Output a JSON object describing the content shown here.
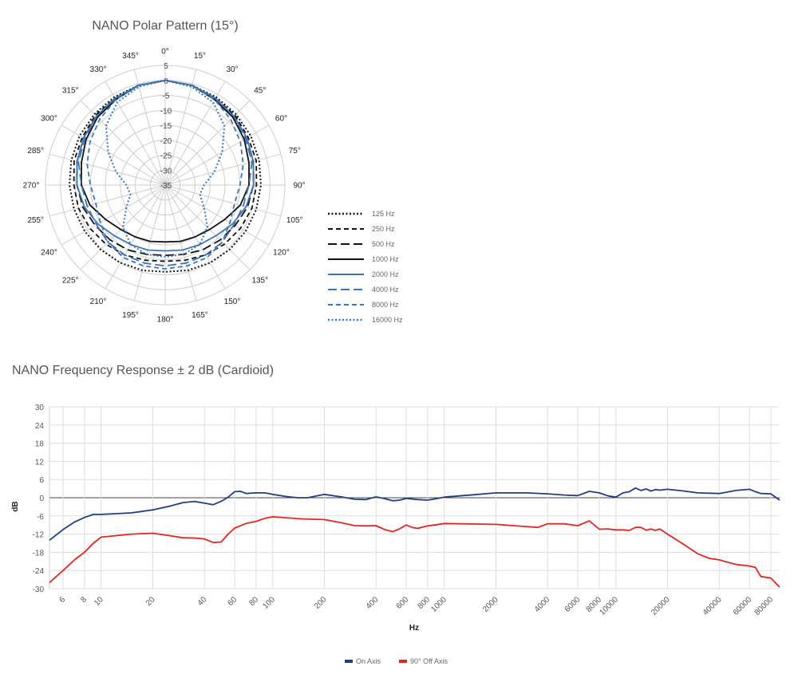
{
  "polar": {
    "title": "NANO Polar Pattern (15°)",
    "angle_labels": [
      "0°",
      "15°",
      "30°",
      "45°",
      "60°",
      "75°",
      "90°",
      "105°",
      "120°",
      "135°",
      "150°",
      "165°",
      "180°",
      "195°",
      "210°",
      "225°",
      "240°",
      "255°",
      "270°",
      "285°",
      "300°",
      "315°",
      "330°",
      "345°"
    ],
    "radial_labels": [
      "5",
      "0",
      "-5",
      "-10",
      "-15",
      "-20",
      "-25",
      "-30",
      "-35"
    ],
    "radial_range": [
      -35,
      5
    ],
    "legend": [
      {
        "label": "125 Hz",
        "color": "#111111",
        "dash": "dot"
      },
      {
        "label": "250 Hz",
        "color": "#111111",
        "dash": "short"
      },
      {
        "label": "500 Hz",
        "color": "#111111",
        "dash": "long"
      },
      {
        "label": "1000 Hz",
        "color": "#111111",
        "dash": "solid"
      },
      {
        "label": "2000 Hz",
        "color": "#3f75b0",
        "dash": "solid"
      },
      {
        "label": "4000 Hz",
        "color": "#3f75b0",
        "dash": "long"
      },
      {
        "label": "8000 Hz",
        "color": "#3f75b0",
        "dash": "short"
      },
      {
        "label": "16000 Hz",
        "color": "#3f75b0",
        "dash": "dot"
      }
    ]
  },
  "chart_data": [
    {
      "type": "line",
      "subtype": "polar",
      "title": "NANO Polar Pattern (15°)",
      "angles": [
        0,
        15,
        30,
        45,
        60,
        75,
        90,
        105,
        120,
        135,
        150,
        165,
        180,
        195,
        210,
        225,
        240,
        255,
        270,
        285,
        300,
        315,
        330,
        345
      ],
      "r_range": [
        -35,
        5
      ],
      "series": [
        {
          "name": "125 Hz",
          "values": [
            0,
            -0.5,
            -1,
            -1.5,
            -2,
            -2.5,
            -3,
            -3.5,
            -4,
            -4.5,
            -5,
            -5.5,
            -6,
            -5.5,
            -5,
            -4.5,
            -4,
            -3.5,
            -3,
            -2.5,
            -2,
            -1.5,
            -1,
            -0.5
          ]
        },
        {
          "name": "250 Hz",
          "values": [
            0,
            -0.5,
            -1.5,
            -2,
            -3,
            -3.5,
            -4.5,
            -5,
            -6,
            -7,
            -8,
            -9,
            -9.5,
            -9,
            -8,
            -7,
            -6,
            -5,
            -4.5,
            -3.5,
            -3,
            -2,
            -1.5,
            -0.5
          ]
        },
        {
          "name": "500 Hz",
          "values": [
            0,
            -0.5,
            -1.5,
            -2.5,
            -3.5,
            -4.5,
            -5.5,
            -6.5,
            -8,
            -9,
            -10,
            -11,
            -11.5,
            -11,
            -10,
            -9,
            -8,
            -6.5,
            -5.5,
            -4.5,
            -3.5,
            -2.5,
            -1.5,
            -0.5
          ]
        },
        {
          "name": "1000 Hz",
          "values": [
            0,
            -0.5,
            -2,
            -3,
            -4.5,
            -6,
            -7,
            -9,
            -12,
            -14,
            -15,
            -15.5,
            -16,
            -15.5,
            -15,
            -14,
            -12,
            -9,
            -7,
            -6,
            -4.5,
            -3,
            -2,
            -0.5
          ]
        },
        {
          "name": "2000 Hz",
          "values": [
            0,
            -0.5,
            -1.5,
            -2.5,
            -3.5,
            -4.5,
            -5.5,
            -7,
            -9,
            -11,
            -12,
            -12.5,
            -13,
            -12.5,
            -12,
            -11,
            -9,
            -7,
            -5.5,
            -4.5,
            -3.5,
            -2.5,
            -1.5,
            -0.5
          ]
        },
        {
          "name": "4000 Hz",
          "values": [
            0,
            -0.5,
            -1.5,
            -2.5,
            -4,
            -5,
            -7,
            -8,
            -8.5,
            -8,
            -8,
            -8,
            -8,
            -8,
            -8,
            -8,
            -8.5,
            -8,
            -7,
            -5,
            -4,
            -2.5,
            -1.5,
            -0.5
          ]
        },
        {
          "name": "8000 Hz",
          "values": [
            0,
            -0.5,
            -2,
            -4,
            -6,
            -8,
            -10,
            -11,
            -10,
            -8,
            -7,
            -7,
            -7,
            -7,
            -7,
            -8,
            -10,
            -11,
            -10,
            -8,
            -6,
            -4,
            -2,
            -0.5
          ]
        },
        {
          "name": "16000 Hz",
          "values": [
            0,
            -1,
            -3,
            -7,
            -13,
            -18,
            -22,
            -23,
            -20,
            -15,
            -12,
            -11,
            -11,
            -11,
            -12,
            -15,
            -20,
            -23,
            -22,
            -18,
            -13,
            -7,
            -3,
            -1
          ]
        }
      ]
    },
    {
      "type": "line",
      "title": "NANO Frequency Response  ± 2 dB (Cardioid)",
      "xlabel": "Hz",
      "ylabel": "dB",
      "x_scale": "log",
      "xlim": [
        5,
        90000
      ],
      "ylim": [
        -30,
        30
      ],
      "x_ticks": [
        6,
        8,
        10,
        20,
        40,
        60,
        80,
        100,
        200,
        400,
        600,
        800,
        1000,
        2000,
        4000,
        6000,
        8000,
        10000,
        20000,
        40000,
        60000,
        80000
      ],
      "y_ticks": [
        30,
        24,
        18,
        12,
        6,
        0,
        -6,
        -12,
        -18,
        -24,
        -30
      ],
      "grid": true,
      "legend_position": "bottom",
      "series": [
        {
          "name": "On Axis",
          "color": "#1f3f7f",
          "points": [
            [
              5,
              -14
            ],
            [
              6,
              -10.5
            ],
            [
              7,
              -8
            ],
            [
              8,
              -6.5
            ],
            [
              9,
              -5.5
            ],
            [
              10,
              -5.5
            ],
            [
              15,
              -5
            ],
            [
              20,
              -4
            ],
            [
              25,
              -2.8
            ],
            [
              30,
              -1.6
            ],
            [
              35,
              -1.2
            ],
            [
              40,
              -1.8
            ],
            [
              45,
              -2.3
            ],
            [
              50,
              -1.2
            ],
            [
              55,
              0.2
            ],
            [
              60,
              2
            ],
            [
              65,
              2.1
            ],
            [
              70,
              1.4
            ],
            [
              80,
              1.6
            ],
            [
              90,
              1.6
            ],
            [
              100,
              1.1
            ],
            [
              120,
              0.4
            ],
            [
              140,
              0
            ],
            [
              160,
              0
            ],
            [
              180,
              0.6
            ],
            [
              200,
              1.1
            ],
            [
              250,
              0.3
            ],
            [
              300,
              -0.5
            ],
            [
              350,
              -0.6
            ],
            [
              400,
              0.3
            ],
            [
              450,
              -0.3
            ],
            [
              500,
              -1
            ],
            [
              550,
              -0.8
            ],
            [
              600,
              -0.2
            ],
            [
              700,
              -0.6
            ],
            [
              800,
              -0.8
            ],
            [
              900,
              -0.3
            ],
            [
              1000,
              0.2
            ],
            [
              1500,
              1
            ],
            [
              2000,
              1.6
            ],
            [
              3000,
              1.6
            ],
            [
              4000,
              1.3
            ],
            [
              5000,
              0.9
            ],
            [
              6000,
              0.7
            ],
            [
              7000,
              2.1
            ],
            [
              8000,
              1.6
            ],
            [
              9000,
              0.6
            ],
            [
              10000,
              0.2
            ],
            [
              11000,
              1.6
            ],
            [
              12000,
              2
            ],
            [
              13000,
              3.2
            ],
            [
              14000,
              2.4
            ],
            [
              15000,
              2.9
            ],
            [
              16000,
              2.2
            ],
            [
              17000,
              2.7
            ],
            [
              18000,
              2.5
            ],
            [
              20000,
              2.8
            ],
            [
              25000,
              2.2
            ],
            [
              30000,
              1.6
            ],
            [
              40000,
              1.4
            ],
            [
              50000,
              2.4
            ],
            [
              60000,
              2.8
            ],
            [
              65000,
              2
            ],
            [
              70000,
              1.4
            ],
            [
              80000,
              1.3
            ],
            [
              90000,
              -0.8
            ]
          ]
        },
        {
          "name": "90° Off Axis",
          "color": "#e0261f",
          "points": [
            [
              5,
              -28
            ],
            [
              6,
              -24
            ],
            [
              7,
              -20.5
            ],
            [
              8,
              -18
            ],
            [
              9,
              -15
            ],
            [
              10,
              -13
            ],
            [
              15,
              -12
            ],
            [
              20,
              -11.7
            ],
            [
              25,
              -12.5
            ],
            [
              30,
              -13.2
            ],
            [
              35,
              -13.3
            ],
            [
              40,
              -13.6
            ],
            [
              45,
              -14.8
            ],
            [
              50,
              -14.6
            ],
            [
              55,
              -12
            ],
            [
              60,
              -10
            ],
            [
              70,
              -8.5
            ],
            [
              80,
              -7.8
            ],
            [
              90,
              -6.8
            ],
            [
              100,
              -6.3
            ],
            [
              150,
              -7
            ],
            [
              200,
              -7.2
            ],
            [
              250,
              -8.2
            ],
            [
              300,
              -9.2
            ],
            [
              350,
              -9.3
            ],
            [
              400,
              -9.2
            ],
            [
              450,
              -10.5
            ],
            [
              500,
              -11.2
            ],
            [
              550,
              -10.2
            ],
            [
              600,
              -9
            ],
            [
              650,
              -9.8
            ],
            [
              700,
              -10.1
            ],
            [
              800,
              -9.3
            ],
            [
              900,
              -8.9
            ],
            [
              1000,
              -8.5
            ],
            [
              2000,
              -8.8
            ],
            [
              3000,
              -9.5
            ],
            [
              3500,
              -9.8
            ],
            [
              4000,
              -8.6
            ],
            [
              5000,
              -8.6
            ],
            [
              6000,
              -9.2
            ],
            [
              7000,
              -7.6
            ],
            [
              8000,
              -10.4
            ],
            [
              9000,
              -10.3
            ],
            [
              10000,
              -10.6
            ],
            [
              11000,
              -10.6
            ],
            [
              12000,
              -10.8
            ],
            [
              13000,
              -9.8
            ],
            [
              14000,
              -9.8
            ],
            [
              15000,
              -10.7
            ],
            [
              16000,
              -10.3
            ],
            [
              17000,
              -10.8
            ],
            [
              18000,
              -10.3
            ],
            [
              20000,
              -12
            ],
            [
              25000,
              -15.5
            ],
            [
              30000,
              -18.5
            ],
            [
              35000,
              -20
            ],
            [
              40000,
              -20.5
            ],
            [
              50000,
              -22
            ],
            [
              60000,
              -22.5
            ],
            [
              65000,
              -23
            ],
            [
              70000,
              -26
            ],
            [
              80000,
              -26.5
            ],
            [
              90000,
              -29.5
            ]
          ]
        }
      ]
    }
  ],
  "freq": {
    "title": "NANO Frequency Response  ± 2 dB (Cardioid)",
    "ylabel": "dB",
    "xlabel": "Hz",
    "legend": [
      {
        "label": "On Axis",
        "color": "#1f3f7f"
      },
      {
        "label": "90° Off Axis",
        "color": "#e0261f"
      }
    ]
  }
}
